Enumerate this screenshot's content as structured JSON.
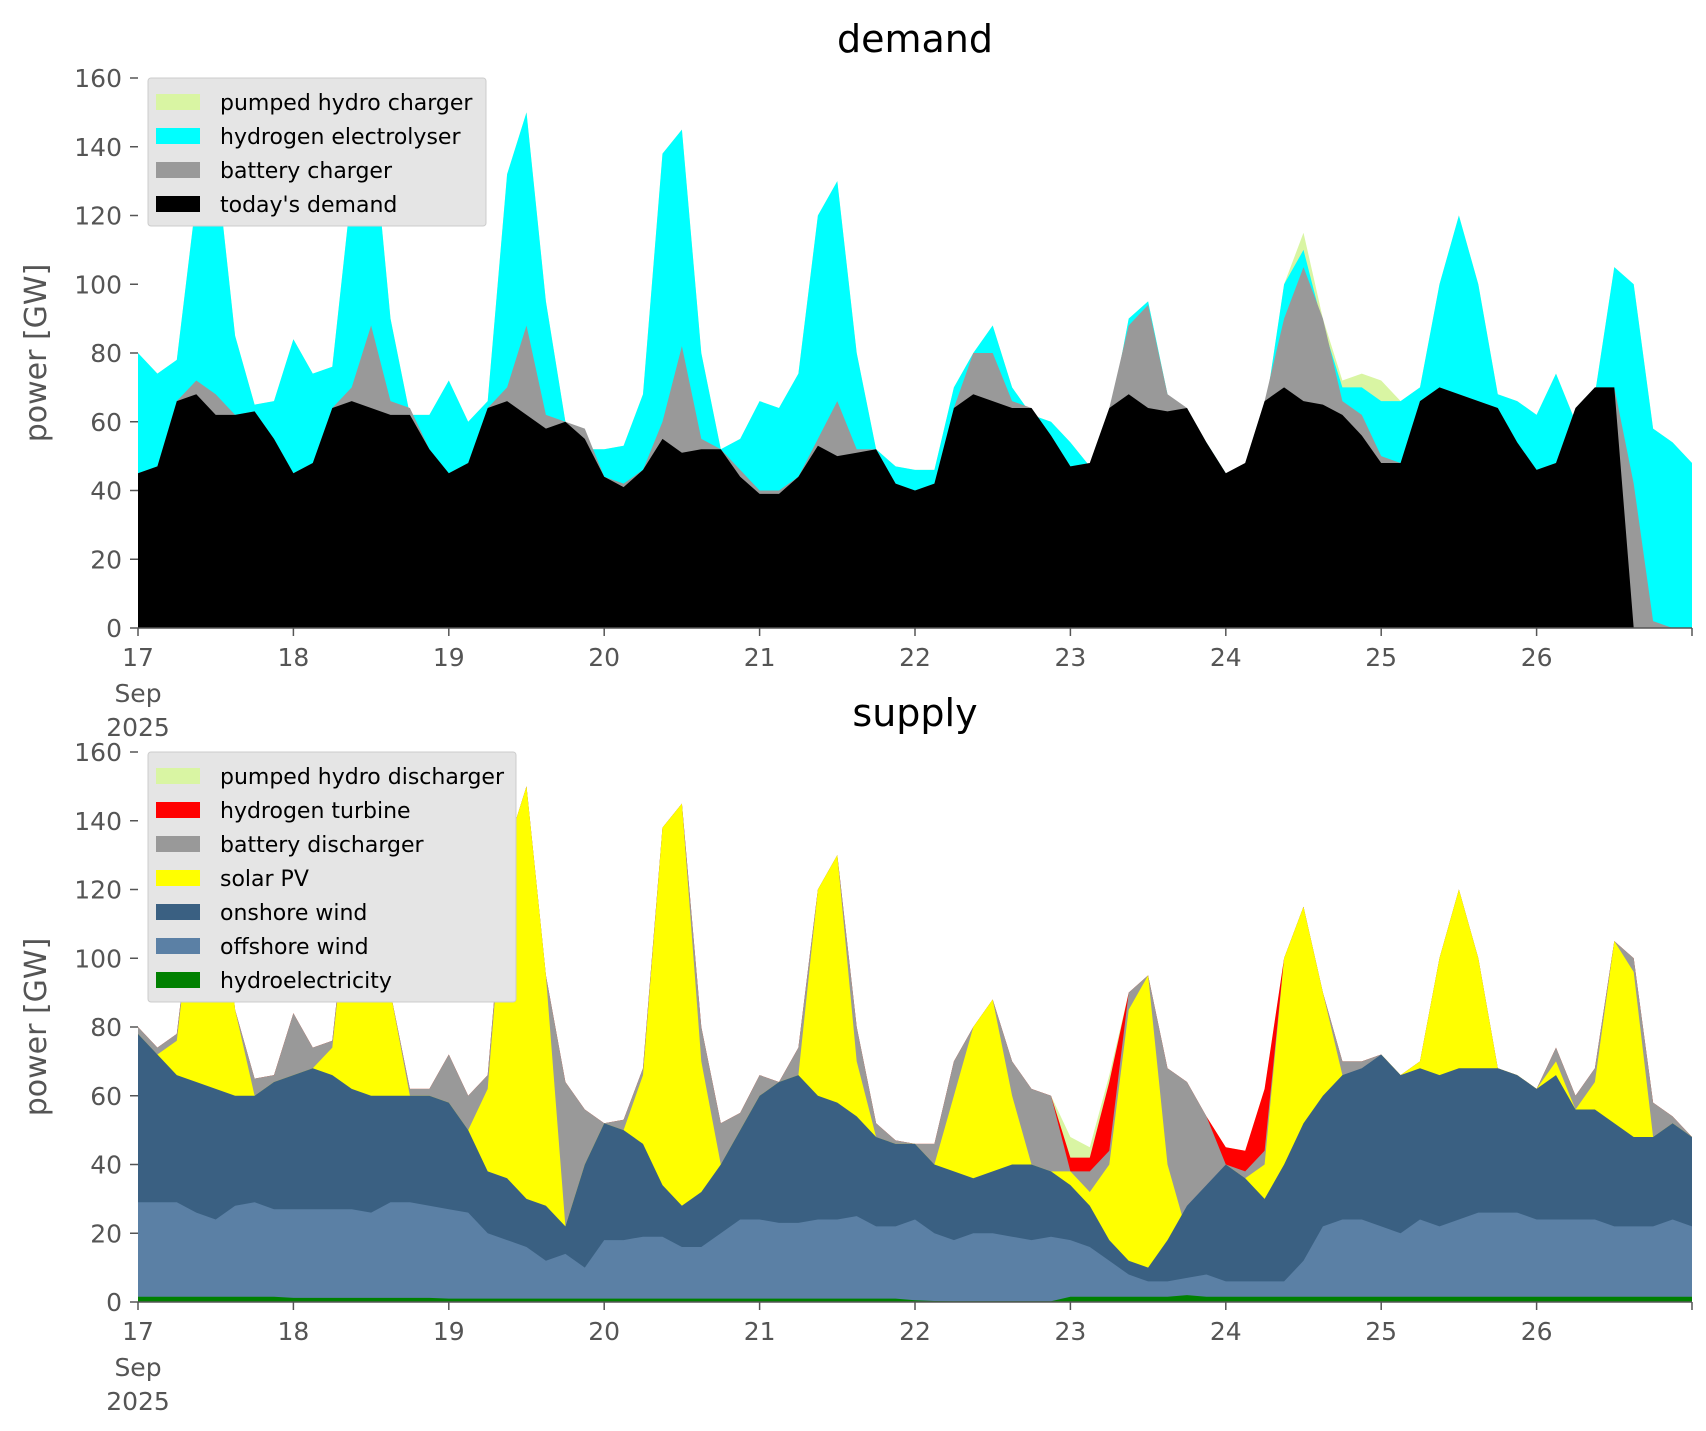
{
  "chart_data": [
    {
      "type": "area",
      "title": "demand",
      "xlabel": "",
      "ylabel": "power [GW]",
      "ylim": [
        0,
        160
      ],
      "xlim": [
        "2025-09-17",
        "2025-09-27"
      ],
      "x_ticks": [
        "17",
        "18",
        "19",
        "20",
        "21",
        "22",
        "23",
        "24",
        "25",
        "26"
      ],
      "x_tick_sub": [
        "Sep",
        "2025"
      ],
      "y_ticks": [
        0,
        20,
        40,
        60,
        80,
        100,
        120,
        140,
        160
      ],
      "legend_position": "top-left",
      "stacked": false,
      "grid": false,
      "x_days": [
        17.0,
        17.125,
        17.25,
        17.375,
        17.5,
        17.625,
        17.75,
        17.875,
        18.0,
        18.125,
        18.25,
        18.375,
        18.5,
        18.625,
        18.75,
        18.875,
        19.0,
        19.125,
        19.25,
        19.375,
        19.5,
        19.625,
        19.75,
        19.875,
        20.0,
        20.125,
        20.25,
        20.375,
        20.5,
        20.625,
        20.75,
        20.875,
        21.0,
        21.125,
        21.25,
        21.375,
        21.5,
        21.625,
        21.75,
        21.875,
        22.0,
        22.125,
        22.25,
        22.375,
        22.5,
        22.625,
        22.75,
        22.875,
        23.0,
        23.125,
        23.25,
        23.375,
        23.5,
        23.625,
        23.75,
        23.875,
        24.0,
        24.125,
        24.25,
        24.375,
        24.5,
        24.625,
        24.75,
        24.875,
        25.0,
        25.125,
        25.25,
        25.375,
        25.5,
        25.625,
        25.75,
        25.875,
        26.0,
        26.125,
        26.25,
        26.375,
        26.5,
        26.625,
        26.75,
        26.875,
        27.0
      ],
      "series": [
        {
          "name": "pumped hydro charger",
          "color": "#d9f5a3",
          "values": [
            80,
            74,
            78,
            125,
            137,
            85,
            65,
            66,
            84,
            74,
            76,
            128,
            150,
            90,
            62,
            62,
            72,
            60,
            66,
            132,
            150,
            95,
            60,
            52,
            52,
            53,
            68,
            138,
            145,
            80,
            52,
            55,
            66,
            64,
            74,
            120,
            130,
            80,
            52,
            47,
            46,
            46,
            70,
            80,
            88,
            70,
            62,
            60,
            54,
            47,
            60,
            90,
            95,
            68,
            60,
            54,
            45,
            46,
            62,
            100,
            115,
            90,
            72,
            74,
            72,
            66,
            70,
            100,
            120,
            100,
            68,
            66,
            62,
            74,
            60,
            68,
            105,
            100,
            58,
            54,
            48
          ]
        },
        {
          "name": "hydrogen electrolyser",
          "color": "#00ffff",
          "values": [
            80,
            74,
            78,
            125,
            137,
            85,
            65,
            66,
            84,
            74,
            76,
            128,
            150,
            90,
            62,
            62,
            72,
            60,
            66,
            132,
            150,
            95,
            60,
            52,
            52,
            53,
            68,
            138,
            145,
            80,
            52,
            55,
            66,
            64,
            74,
            120,
            130,
            80,
            52,
            47,
            46,
            46,
            70,
            80,
            88,
            70,
            62,
            60,
            54,
            47,
            60,
            90,
            95,
            68,
            60,
            54,
            45,
            46,
            62,
            100,
            110,
            88,
            70,
            70,
            66,
            66,
            70,
            100,
            120,
            100,
            68,
            66,
            62,
            74,
            60,
            68,
            105,
            100,
            58,
            54,
            48
          ]
        },
        {
          "name": "battery charger",
          "color": "#999999",
          "values": [
            45,
            47,
            66,
            72,
            68,
            62,
            63,
            55,
            45,
            48,
            64,
            70,
            88,
            66,
            64,
            52,
            45,
            48,
            64,
            70,
            88,
            62,
            60,
            58,
            44,
            42,
            46,
            60,
            82,
            55,
            52,
            46,
            40,
            40,
            44,
            55,
            66,
            52,
            52,
            42,
            40,
            42,
            64,
            80,
            80,
            66,
            64,
            56,
            47,
            48,
            64,
            88,
            94,
            68,
            64,
            54,
            45,
            48,
            66,
            90,
            105,
            90,
            66,
            62,
            50,
            48,
            66,
            70,
            68,
            66,
            64,
            54,
            46,
            48,
            64,
            70,
            70,
            42,
            2,
            0,
            0
          ]
        },
        {
          "name": "today's demand",
          "color": "#000000",
          "values": [
            45,
            47,
            66,
            68,
            62,
            62,
            63,
            55,
            45,
            48,
            64,
            66,
            64,
            62,
            62,
            52,
            45,
            48,
            64,
            66,
            62,
            58,
            60,
            55,
            44,
            41,
            46,
            55,
            51,
            52,
            52,
            44,
            39,
            39,
            44,
            53,
            50,
            51,
            52,
            42,
            40,
            42,
            64,
            68,
            66,
            64,
            64,
            56,
            47,
            48,
            64,
            68,
            64,
            63,
            64,
            54,
            45,
            48,
            66,
            70,
            66,
            65,
            62,
            56,
            48,
            48,
            66,
            70,
            68,
            66,
            64,
            54,
            46,
            48,
            64,
            70,
            70,
            0,
            0,
            0,
            0
          ]
        }
      ]
    },
    {
      "type": "area",
      "title": "supply",
      "xlabel": "",
      "ylabel": "power [GW]",
      "ylim": [
        0,
        160
      ],
      "xlim": [
        "2025-09-17",
        "2025-09-27"
      ],
      "x_ticks": [
        "17",
        "18",
        "19",
        "20",
        "21",
        "22",
        "23",
        "24",
        "25",
        "26"
      ],
      "x_tick_sub": [
        "Sep",
        "2025"
      ],
      "y_ticks": [
        0,
        20,
        40,
        60,
        80,
        100,
        120,
        140,
        160
      ],
      "legend_position": "top-left",
      "stacked": false,
      "grid": false,
      "x_days": [
        17.0,
        17.125,
        17.25,
        17.375,
        17.5,
        17.625,
        17.75,
        17.875,
        18.0,
        18.125,
        18.25,
        18.375,
        18.5,
        18.625,
        18.75,
        18.875,
        19.0,
        19.125,
        19.25,
        19.375,
        19.5,
        19.625,
        19.75,
        19.875,
        20.0,
        20.125,
        20.25,
        20.375,
        20.5,
        20.625,
        20.75,
        20.875,
        21.0,
        21.125,
        21.25,
        21.375,
        21.5,
        21.625,
        21.75,
        21.875,
        22.0,
        22.125,
        22.25,
        22.375,
        22.5,
        22.625,
        22.75,
        22.875,
        23.0,
        23.125,
        23.25,
        23.375,
        23.5,
        23.625,
        23.75,
        23.875,
        24.0,
        24.125,
        24.25,
        24.375,
        24.5,
        24.625,
        24.75,
        24.875,
        25.0,
        25.125,
        25.25,
        25.375,
        25.5,
        25.625,
        25.75,
        25.875,
        26.0,
        26.125,
        26.25,
        26.375,
        26.5,
        26.625,
        26.75,
        26.875,
        27.0
      ],
      "series": [
        {
          "name": "pumped hydro discharger",
          "color": "#d9f5a3",
          "values": [
            80,
            74,
            78,
            125,
            137,
            85,
            65,
            66,
            84,
            74,
            76,
            128,
            150,
            90,
            62,
            62,
            72,
            60,
            66,
            132,
            150,
            95,
            64,
            56,
            52,
            53,
            68,
            138,
            145,
            80,
            52,
            55,
            66,
            64,
            74,
            120,
            130,
            80,
            52,
            47,
            46,
            46,
            70,
            80,
            88,
            70,
            62,
            60,
            48,
            45,
            66,
            90,
            95,
            68,
            64,
            54,
            45,
            44,
            62,
            100,
            115,
            90,
            70,
            70,
            72,
            66,
            70,
            100,
            120,
            100,
            68,
            66,
            62,
            74,
            60,
            68,
            105,
            100,
            58,
            54,
            48
          ]
        },
        {
          "name": "hydrogen turbine",
          "color": "#ff0000",
          "values": [
            80,
            74,
            78,
            125,
            137,
            85,
            65,
            66,
            84,
            74,
            76,
            128,
            150,
            90,
            62,
            62,
            72,
            60,
            66,
            132,
            150,
            95,
            64,
            56,
            52,
            53,
            68,
            138,
            145,
            80,
            52,
            55,
            66,
            64,
            74,
            120,
            130,
            80,
            52,
            47,
            46,
            46,
            70,
            80,
            88,
            70,
            62,
            60,
            42,
            42,
            64,
            90,
            95,
            68,
            64,
            54,
            45,
            44,
            62,
            100,
            115,
            90,
            70,
            70,
            72,
            66,
            70,
            100,
            120,
            100,
            68,
            66,
            62,
            74,
            60,
            68,
            105,
            100,
            58,
            54,
            48
          ]
        },
        {
          "name": "battery discharger",
          "color": "#999999",
          "values": [
            80,
            74,
            78,
            125,
            137,
            85,
            65,
            66,
            84,
            74,
            76,
            128,
            150,
            90,
            62,
            62,
            72,
            60,
            66,
            132,
            150,
            95,
            64,
            56,
            52,
            53,
            68,
            138,
            145,
            80,
            52,
            55,
            66,
            64,
            74,
            120,
            130,
            80,
            52,
            47,
            46,
            46,
            70,
            80,
            88,
            70,
            62,
            60,
            38,
            38,
            44,
            90,
            95,
            68,
            64,
            54,
            40,
            38,
            44,
            100,
            115,
            90,
            70,
            70,
            72,
            66,
            70,
            100,
            120,
            100,
            68,
            66,
            62,
            74,
            60,
            68,
            105,
            100,
            58,
            54,
            48
          ]
        },
        {
          "name": "solar PV",
          "color": "#ffff00",
          "values": [
            78,
            72,
            76,
            125,
            137,
            85,
            60,
            64,
            66,
            68,
            74,
            128,
            150,
            90,
            60,
            60,
            58,
            50,
            62,
            132,
            150,
            95,
            22,
            40,
            52,
            50,
            66,
            138,
            145,
            70,
            40,
            50,
            60,
            64,
            66,
            120,
            130,
            70,
            48,
            46,
            46,
            40,
            60,
            80,
            88,
            60,
            40,
            38,
            38,
            32,
            40,
            85,
            95,
            40,
            20,
            28,
            40,
            36,
            40,
            100,
            115,
            90,
            66,
            64,
            72,
            66,
            70,
            100,
            120,
            100,
            68,
            66,
            62,
            70,
            56,
            64,
            105,
            96,
            48,
            52,
            48
          ]
        },
        {
          "name": "onshore wind",
          "color": "#3a6082",
          "values": [
            78,
            72,
            66,
            64,
            62,
            60,
            60,
            64,
            66,
            68,
            66,
            62,
            60,
            60,
            60,
            60,
            58,
            50,
            38,
            36,
            30,
            28,
            22,
            40,
            52,
            50,
            46,
            34,
            28,
            32,
            40,
            50,
            60,
            64,
            66,
            60,
            58,
            54,
            48,
            46,
            46,
            40,
            38,
            36,
            38,
            40,
            40,
            38,
            34,
            28,
            18,
            12,
            10,
            18,
            28,
            34,
            40,
            36,
            30,
            40,
            52,
            60,
            66,
            68,
            72,
            66,
            68,
            66,
            68,
            68,
            68,
            66,
            62,
            66,
            56,
            56,
            52,
            48,
            48,
            52,
            48
          ]
        },
        {
          "name": "offshore wind",
          "color": "#5b80a5",
          "values": [
            29,
            29,
            29,
            26,
            24,
            28,
            29,
            27,
            27,
            27,
            27,
            27,
            26,
            29,
            29,
            28,
            27,
            26,
            20,
            18,
            16,
            12,
            14,
            10,
            18,
            18,
            19,
            19,
            16,
            16,
            20,
            24,
            24,
            23,
            23,
            24,
            24,
            25,
            22,
            22,
            24,
            20,
            18,
            20,
            20,
            19,
            18,
            19,
            18,
            16,
            12,
            8,
            6,
            6,
            7,
            8,
            6,
            6,
            6,
            6,
            12,
            22,
            24,
            24,
            22,
            20,
            24,
            22,
            24,
            26,
            26,
            26,
            24,
            24,
            24,
            24,
            22,
            22,
            22,
            24,
            22
          ]
        },
        {
          "name": "hydroelectricity",
          "color": "#008000",
          "values": [
            1.5,
            1.5,
            1.5,
            1.5,
            1.5,
            1.5,
            1.5,
            1.5,
            1.2,
            1.2,
            1.2,
            1.2,
            1.2,
            1.2,
            1.2,
            1.2,
            1.0,
            1.0,
            1.0,
            1.0,
            1.0,
            1.0,
            1.0,
            1.0,
            1.0,
            1.0,
            1.0,
            1.0,
            1.0,
            1.0,
            1.0,
            1.0,
            1.0,
            1.0,
            1.0,
            1.0,
            1.0,
            1.0,
            1.0,
            1.0,
            0.5,
            0.3,
            0.2,
            0.2,
            0.2,
            0.2,
            0.2,
            0.2,
            1.5,
            1.5,
            1.5,
            1.5,
            1.5,
            1.5,
            2.0,
            1.5,
            1.5,
            1.5,
            1.5,
            1.5,
            1.5,
            1.5,
            1.5,
            1.5,
            1.5,
            1.5,
            1.5,
            1.5,
            1.5,
            1.5,
            1.5,
            1.5,
            1.5,
            1.5,
            1.5,
            1.5,
            1.5,
            1.5,
            1.5,
            1.5,
            1.5
          ]
        }
      ]
    }
  ]
}
